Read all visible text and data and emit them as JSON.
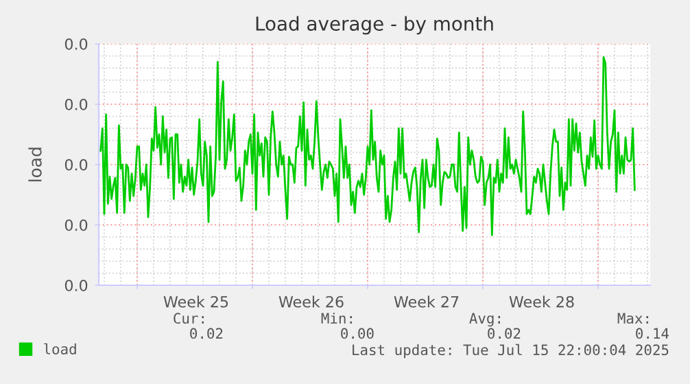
{
  "chart_data": {
    "type": "line",
    "title": "Load average - by month",
    "ylabel": "load",
    "x": [
      "2025-06-13T18:40",
      "2025-06-13T21:20",
      "2025-06-14T00:00",
      "2025-06-14T02:40",
      "2025-06-14T05:20",
      "2025-06-14T08:00",
      "2025-06-14T10:40",
      "2025-06-14T13:20",
      "2025-06-14T16:00",
      "2025-06-14T18:40",
      "2025-06-14T21:20",
      "2025-06-15T00:00",
      "2025-06-15T02:40",
      "2025-06-15T05:20",
      "2025-06-15T08:00",
      "2025-06-15T10:40",
      "2025-06-15T13:20",
      "2025-06-15T16:00",
      "2025-06-15T18:40",
      "2025-06-15T21:20",
      "2025-06-16T00:00",
      "2025-06-16T02:40",
      "2025-06-16T05:20",
      "2025-06-16T08:00",
      "2025-06-16T10:40",
      "2025-06-16T13:20",
      "2025-06-16T16:00",
      "2025-06-16T18:40",
      "2025-06-16T21:20",
      "2025-06-17T00:00",
      "2025-06-17T02:40",
      "2025-06-17T05:20",
      "2025-06-17T08:00",
      "2025-06-17T10:40",
      "2025-06-17T13:20",
      "2025-06-17T16:00",
      "2025-06-17T18:40",
      "2025-06-17T21:20",
      "2025-06-18T00:00",
      "2025-06-18T02:40",
      "2025-06-18T05:20",
      "2025-06-18T08:00",
      "2025-06-18T10:40",
      "2025-06-18T13:20",
      "2025-06-18T16:00",
      "2025-06-18T18:40",
      "2025-06-18T21:20",
      "2025-06-19T00:00",
      "2025-06-19T02:40",
      "2025-06-19T05:20",
      "2025-06-19T08:00",
      "2025-06-19T10:40",
      "2025-06-19T13:20",
      "2025-06-19T16:00",
      "2025-06-19T18:40",
      "2025-06-19T21:20",
      "2025-06-20T00:00",
      "2025-06-20T02:40",
      "2025-06-20T05:20",
      "2025-06-20T08:00",
      "2025-06-20T10:40",
      "2025-06-20T13:20",
      "2025-06-20T16:00",
      "2025-06-20T18:40",
      "2025-06-20T21:20",
      "2025-06-21T00:00",
      "2025-06-21T02:40",
      "2025-06-21T05:20",
      "2025-06-21T08:00",
      "2025-06-21T10:40",
      "2025-06-21T13:20",
      "2025-06-21T16:00",
      "2025-06-21T18:40",
      "2025-06-21T21:20",
      "2025-06-22T00:00",
      "2025-06-22T02:40",
      "2025-06-22T05:20",
      "2025-06-22T08:00",
      "2025-06-22T10:40",
      "2025-06-22T13:20",
      "2025-06-22T16:00",
      "2025-06-22T18:40",
      "2025-06-22T21:20",
      "2025-06-23T00:00",
      "2025-06-23T02:40",
      "2025-06-23T05:20",
      "2025-06-23T08:00",
      "2025-06-23T10:40",
      "2025-06-23T13:20",
      "2025-06-23T16:00",
      "2025-06-23T18:40",
      "2025-06-23T21:20",
      "2025-06-24T00:00",
      "2025-06-24T02:40",
      "2025-06-24T05:20",
      "2025-06-24T08:00",
      "2025-06-24T10:40",
      "2025-06-24T13:20",
      "2025-06-24T16:00",
      "2025-06-24T18:40",
      "2025-06-24T21:20",
      "2025-06-25T00:00",
      "2025-06-25T02:40",
      "2025-06-25T05:20",
      "2025-06-25T08:00",
      "2025-06-25T10:40",
      "2025-06-25T13:20",
      "2025-06-25T16:00",
      "2025-06-25T18:40",
      "2025-06-25T21:20",
      "2025-06-26T00:00",
      "2025-06-26T02:40",
      "2025-06-26T05:20",
      "2025-06-26T08:00",
      "2025-06-26T10:40",
      "2025-06-26T13:20",
      "2025-06-26T16:00",
      "2025-06-26T18:40",
      "2025-06-26T21:20",
      "2025-06-27T00:00",
      "2025-06-27T02:40",
      "2025-06-27T05:20",
      "2025-06-27T08:00",
      "2025-06-27T10:40",
      "2025-06-27T13:20",
      "2025-06-27T16:00",
      "2025-06-27T18:40",
      "2025-06-27T21:20",
      "2025-06-28T00:00",
      "2025-06-28T02:40",
      "2025-06-28T05:20",
      "2025-06-28T08:00",
      "2025-06-28T10:40",
      "2025-06-28T13:20",
      "2025-06-28T16:00",
      "2025-06-28T18:40",
      "2025-06-28T21:20",
      "2025-06-29T00:00",
      "2025-06-29T02:40",
      "2025-06-29T05:20",
      "2025-06-29T08:00",
      "2025-06-29T10:40",
      "2025-06-29T13:20",
      "2025-06-29T16:00",
      "2025-06-29T18:40",
      "2025-06-29T21:20",
      "2025-06-30T00:00",
      "2025-06-30T02:40",
      "2025-06-30T05:20",
      "2025-06-30T08:00",
      "2025-06-30T10:40",
      "2025-06-30T13:20",
      "2025-06-30T16:00",
      "2025-06-30T18:40",
      "2025-06-30T21:20",
      "2025-07-01T00:00",
      "2025-07-01T02:40",
      "2025-07-01T05:20",
      "2025-07-01T08:00",
      "2025-07-01T10:40",
      "2025-07-01T13:20",
      "2025-07-01T16:00",
      "2025-07-01T18:40",
      "2025-07-01T21:20",
      "2025-07-02T00:00",
      "2025-07-02T02:40",
      "2025-07-02T05:20",
      "2025-07-02T08:00",
      "2025-07-02T10:40",
      "2025-07-02T13:20",
      "2025-07-02T16:00",
      "2025-07-02T18:40",
      "2025-07-02T21:20",
      "2025-07-03T00:00",
      "2025-07-03T02:40",
      "2025-07-03T05:20",
      "2025-07-03T08:00",
      "2025-07-03T10:40",
      "2025-07-03T13:20",
      "2025-07-03T16:00",
      "2025-07-03T18:40",
      "2025-07-03T21:20",
      "2025-07-04T00:00",
      "2025-07-04T02:40",
      "2025-07-04T05:20",
      "2025-07-04T08:00",
      "2025-07-04T10:40",
      "2025-07-04T13:20",
      "2025-07-04T16:00",
      "2025-07-04T18:40",
      "2025-07-04T21:20",
      "2025-07-05T00:00",
      "2025-07-05T02:40",
      "2025-07-05T05:20",
      "2025-07-05T08:00",
      "2025-07-05T10:40",
      "2025-07-05T13:20",
      "2025-07-05T16:00",
      "2025-07-05T18:40",
      "2025-07-05T21:20",
      "2025-07-06T00:00",
      "2025-07-06T02:40",
      "2025-07-06T05:20",
      "2025-07-06T08:00",
      "2025-07-06T10:40",
      "2025-07-06T13:20",
      "2025-07-06T16:00",
      "2025-07-06T18:40",
      "2025-07-06T21:20",
      "2025-07-07T00:00",
      "2025-07-07T02:40",
      "2025-07-07T05:20",
      "2025-07-07T08:00",
      "2025-07-07T10:40",
      "2025-07-07T13:20",
      "2025-07-07T16:00",
      "2025-07-07T18:40",
      "2025-07-07T21:20",
      "2025-07-08T00:00",
      "2025-07-08T02:40",
      "2025-07-08T05:20",
      "2025-07-08T08:00",
      "2025-07-08T10:40",
      "2025-07-08T13:20",
      "2025-07-08T16:00",
      "2025-07-08T18:40",
      "2025-07-08T21:20",
      "2025-07-09T00:00",
      "2025-07-09T02:40",
      "2025-07-09T05:20",
      "2025-07-09T08:00",
      "2025-07-09T10:40",
      "2025-07-09T13:20",
      "2025-07-09T16:00",
      "2025-07-09T18:40",
      "2025-07-09T21:20",
      "2025-07-10T00:00",
      "2025-07-10T02:40",
      "2025-07-10T05:20",
      "2025-07-10T08:00",
      "2025-07-10T10:40",
      "2025-07-10T13:20",
      "2025-07-10T16:00",
      "2025-07-10T18:40",
      "2025-07-10T21:20",
      "2025-07-11T00:00",
      "2025-07-11T02:40",
      "2025-07-11T05:20",
      "2025-07-11T08:00",
      "2025-07-11T10:40",
      "2025-07-11T13:20",
      "2025-07-11T16:00",
      "2025-07-11T18:40",
      "2025-07-11T21:20",
      "2025-07-12T00:00",
      "2025-07-12T02:40",
      "2025-07-12T05:20",
      "2025-07-12T08:00",
      "2025-07-12T10:40",
      "2025-07-12T13:20",
      "2025-07-12T16:00",
      "2025-07-12T18:40",
      "2025-07-12T21:20",
      "2025-07-13T00:00",
      "2025-07-13T02:40",
      "2025-07-13T05:20",
      "2025-07-13T08:00",
      "2025-07-13T10:40",
      "2025-07-13T13:20",
      "2025-07-13T16:00",
      "2025-07-13T18:40",
      "2025-07-13T21:20",
      "2025-07-14T00:00",
      "2025-07-14T02:40",
      "2025-07-14T05:20",
      "2025-07-14T08:00",
      "2025-07-14T10:40",
      "2025-07-14T13:20",
      "2025-07-14T16:00",
      "2025-07-14T18:40",
      "2025-07-14T21:20",
      "2025-07-15T00:00",
      "2025-07-15T02:40",
      "2025-07-15T05:20",
      "2025-07-15T08:00",
      "2025-07-15T10:40",
      "2025-07-15T13:20",
      "2025-07-15T16:00",
      "2025-07-15T18:40",
      "2025-07-15T21:20",
      "2025-07-16T00:00",
      "2025-07-16T02:40",
      "2025-07-16T05:20"
    ],
    "series": [
      {
        "name": "load",
        "color": "#00cc00",
        "values": [
          0.0223,
          0.026,
          0.0118,
          0.0283,
          0.0135,
          0.018,
          0.0143,
          0.0165,
          0.0178,
          0.012,
          0.0265,
          0.0193,
          0.02,
          0.012,
          0.02,
          0.0195,
          0.014,
          0.0185,
          0.0148,
          0.0178,
          0.023,
          0.023,
          0.0158,
          0.0185,
          0.0165,
          0.02,
          0.0113,
          0.0163,
          0.0243,
          0.0223,
          0.0295,
          0.0228,
          0.025,
          0.02,
          0.028,
          0.022,
          0.0258,
          0.0178,
          0.0243,
          0.0245,
          0.0143,
          0.025,
          0.025,
          0.017,
          0.02,
          0.0155,
          0.018,
          0.0165,
          0.0208,
          0.0158,
          0.0195,
          0.015,
          0.0173,
          0.0205,
          0.0275,
          0.0185,
          0.0165,
          0.0238,
          0.0215,
          0.0105,
          0.023,
          0.0148,
          0.0155,
          0.0215,
          0.037,
          0.0208,
          0.0305,
          0.0338,
          0.0193,
          0.0208,
          0.0275,
          0.0223,
          0.0245,
          0.0283,
          0.0173,
          0.0178,
          0.0195,
          0.014,
          0.0165,
          0.0223,
          0.02,
          0.0238,
          0.025,
          0.0185,
          0.0283,
          0.0125,
          0.0253,
          0.0215,
          0.0235,
          0.018,
          0.0245,
          0.0238,
          0.015,
          0.0245,
          0.0288,
          0.0253,
          0.02,
          0.018,
          0.0238,
          0.02,
          0.0215,
          0.0158,
          0.011,
          0.0213,
          0.02,
          0.02,
          0.017,
          0.0228,
          0.023,
          0.028,
          0.0223,
          0.0303,
          0.0165,
          0.0258,
          0.0208,
          0.0215,
          0.0193,
          0.0238,
          0.0305,
          0.0245,
          0.02,
          0.0158,
          0.0188,
          0.02,
          0.0178,
          0.0205,
          0.02,
          0.0193,
          0.0148,
          0.0185,
          0.0105,
          0.0275,
          0.023,
          0.0178,
          0.023,
          0.0178,
          0.02,
          0.0133,
          0.0155,
          0.012,
          0.0163,
          0.0173,
          0.0163,
          0.0185,
          0.015,
          0.0178,
          0.023,
          0.02,
          0.029,
          0.0208,
          0.0238,
          0.0178,
          0.0155,
          0.0223,
          0.02,
          0.0215,
          0.011,
          0.0148,
          0.0105,
          0.0125,
          0.0178,
          0.0205,
          0.0158,
          0.026,
          0.0185,
          0.026,
          0.0178,
          0.0185,
          0.0163,
          0.014,
          0.017,
          0.0188,
          0.0195,
          0.0163,
          0.0088,
          0.0178,
          0.0208,
          0.0128,
          0.0208,
          0.0178,
          0.0163,
          0.0165,
          0.02,
          0.0163,
          0.0243,
          0.0223,
          0.0133,
          0.017,
          0.0188,
          0.0185,
          0.0178,
          0.018,
          0.02,
          0.02,
          0.0163,
          0.0155,
          0.0253,
          0.0165,
          0.009,
          0.0163,
          0.0095,
          0.0245,
          0.02,
          0.0223,
          0.0208,
          0.018,
          0.017,
          0.0173,
          0.0213,
          0.0205,
          0.0133,
          0.017,
          0.0178,
          0.02,
          0.0083,
          0.0178,
          0.017,
          0.0208,
          0.0155,
          0.0185,
          0.017,
          0.026,
          0.0178,
          0.0245,
          0.0193,
          0.02,
          0.0185,
          0.0208,
          0.0193,
          0.0178,
          0.0155,
          0.0288,
          0.0223,
          0.0118,
          0.0125,
          0.0118,
          0.0148,
          0.018,
          0.017,
          0.0193,
          0.0185,
          0.0155,
          0.02,
          0.017,
          0.014,
          0.0118,
          0.0185,
          0.023,
          0.0258,
          0.0238,
          0.0238,
          0.0148,
          0.0195,
          0.0125,
          0.017,
          0.0158,
          0.0275,
          0.0165,
          0.0275,
          0.0223,
          0.0268,
          0.022,
          0.0253,
          0.0205,
          0.0185,
          0.0165,
          0.0215,
          0.0193,
          0.0245,
          0.0213,
          0.0273,
          0.0193,
          0.0215,
          0.02,
          0.0193,
          0.0378,
          0.0368,
          0.0253,
          0.0193,
          0.0238,
          0.025,
          0.029,
          0.0155,
          0.0253,
          0.0185,
          0.0215,
          0.0185,
          0.0245,
          0.0208,
          0.0205,
          0.0208,
          0.026,
          0.0158
        ]
      }
    ],
    "xlim": [
      "2025-06-13T16:00",
      "2025-07-17T04:00"
    ],
    "xticks": [
      {
        "value": "2025-06-16",
        "label": null
      },
      {
        "value": "2025-06-19T14:00",
        "label": "Week 25"
      },
      {
        "value": "2025-06-23",
        "label": null
      },
      {
        "value": "2025-06-26T14:00",
        "label": "Week 26"
      },
      {
        "value": "2025-06-30",
        "label": null
      },
      {
        "value": "2025-07-03T14:00",
        "label": "Week 27"
      },
      {
        "value": "2025-07-07",
        "label": null
      },
      {
        "value": "2025-07-10T14:00",
        "label": "Week 28"
      },
      {
        "value": "2025-07-14",
        "label": null
      }
    ],
    "ylim": [
      0,
      0.04
    ],
    "yticks": [
      {
        "value": 0,
        "label": "0.0"
      },
      {
        "value": 0.01,
        "label": "0.0"
      },
      {
        "value": 0.02,
        "label": "0.0"
      },
      {
        "value": 0.03,
        "label": "0.0"
      },
      {
        "value": 0.04,
        "label": "0.0"
      }
    ],
    "grid": true,
    "legend": "bottom left",
    "marker": "none",
    "line_style": "solid",
    "annotations": [
      "Cur:",
      "0.02",
      "Min:",
      "0.00",
      "Avg:",
      "0.02",
      "Max:",
      "0.14",
      "Last update: Tue Jul 15 22:00:04 2025"
    ]
  }
}
